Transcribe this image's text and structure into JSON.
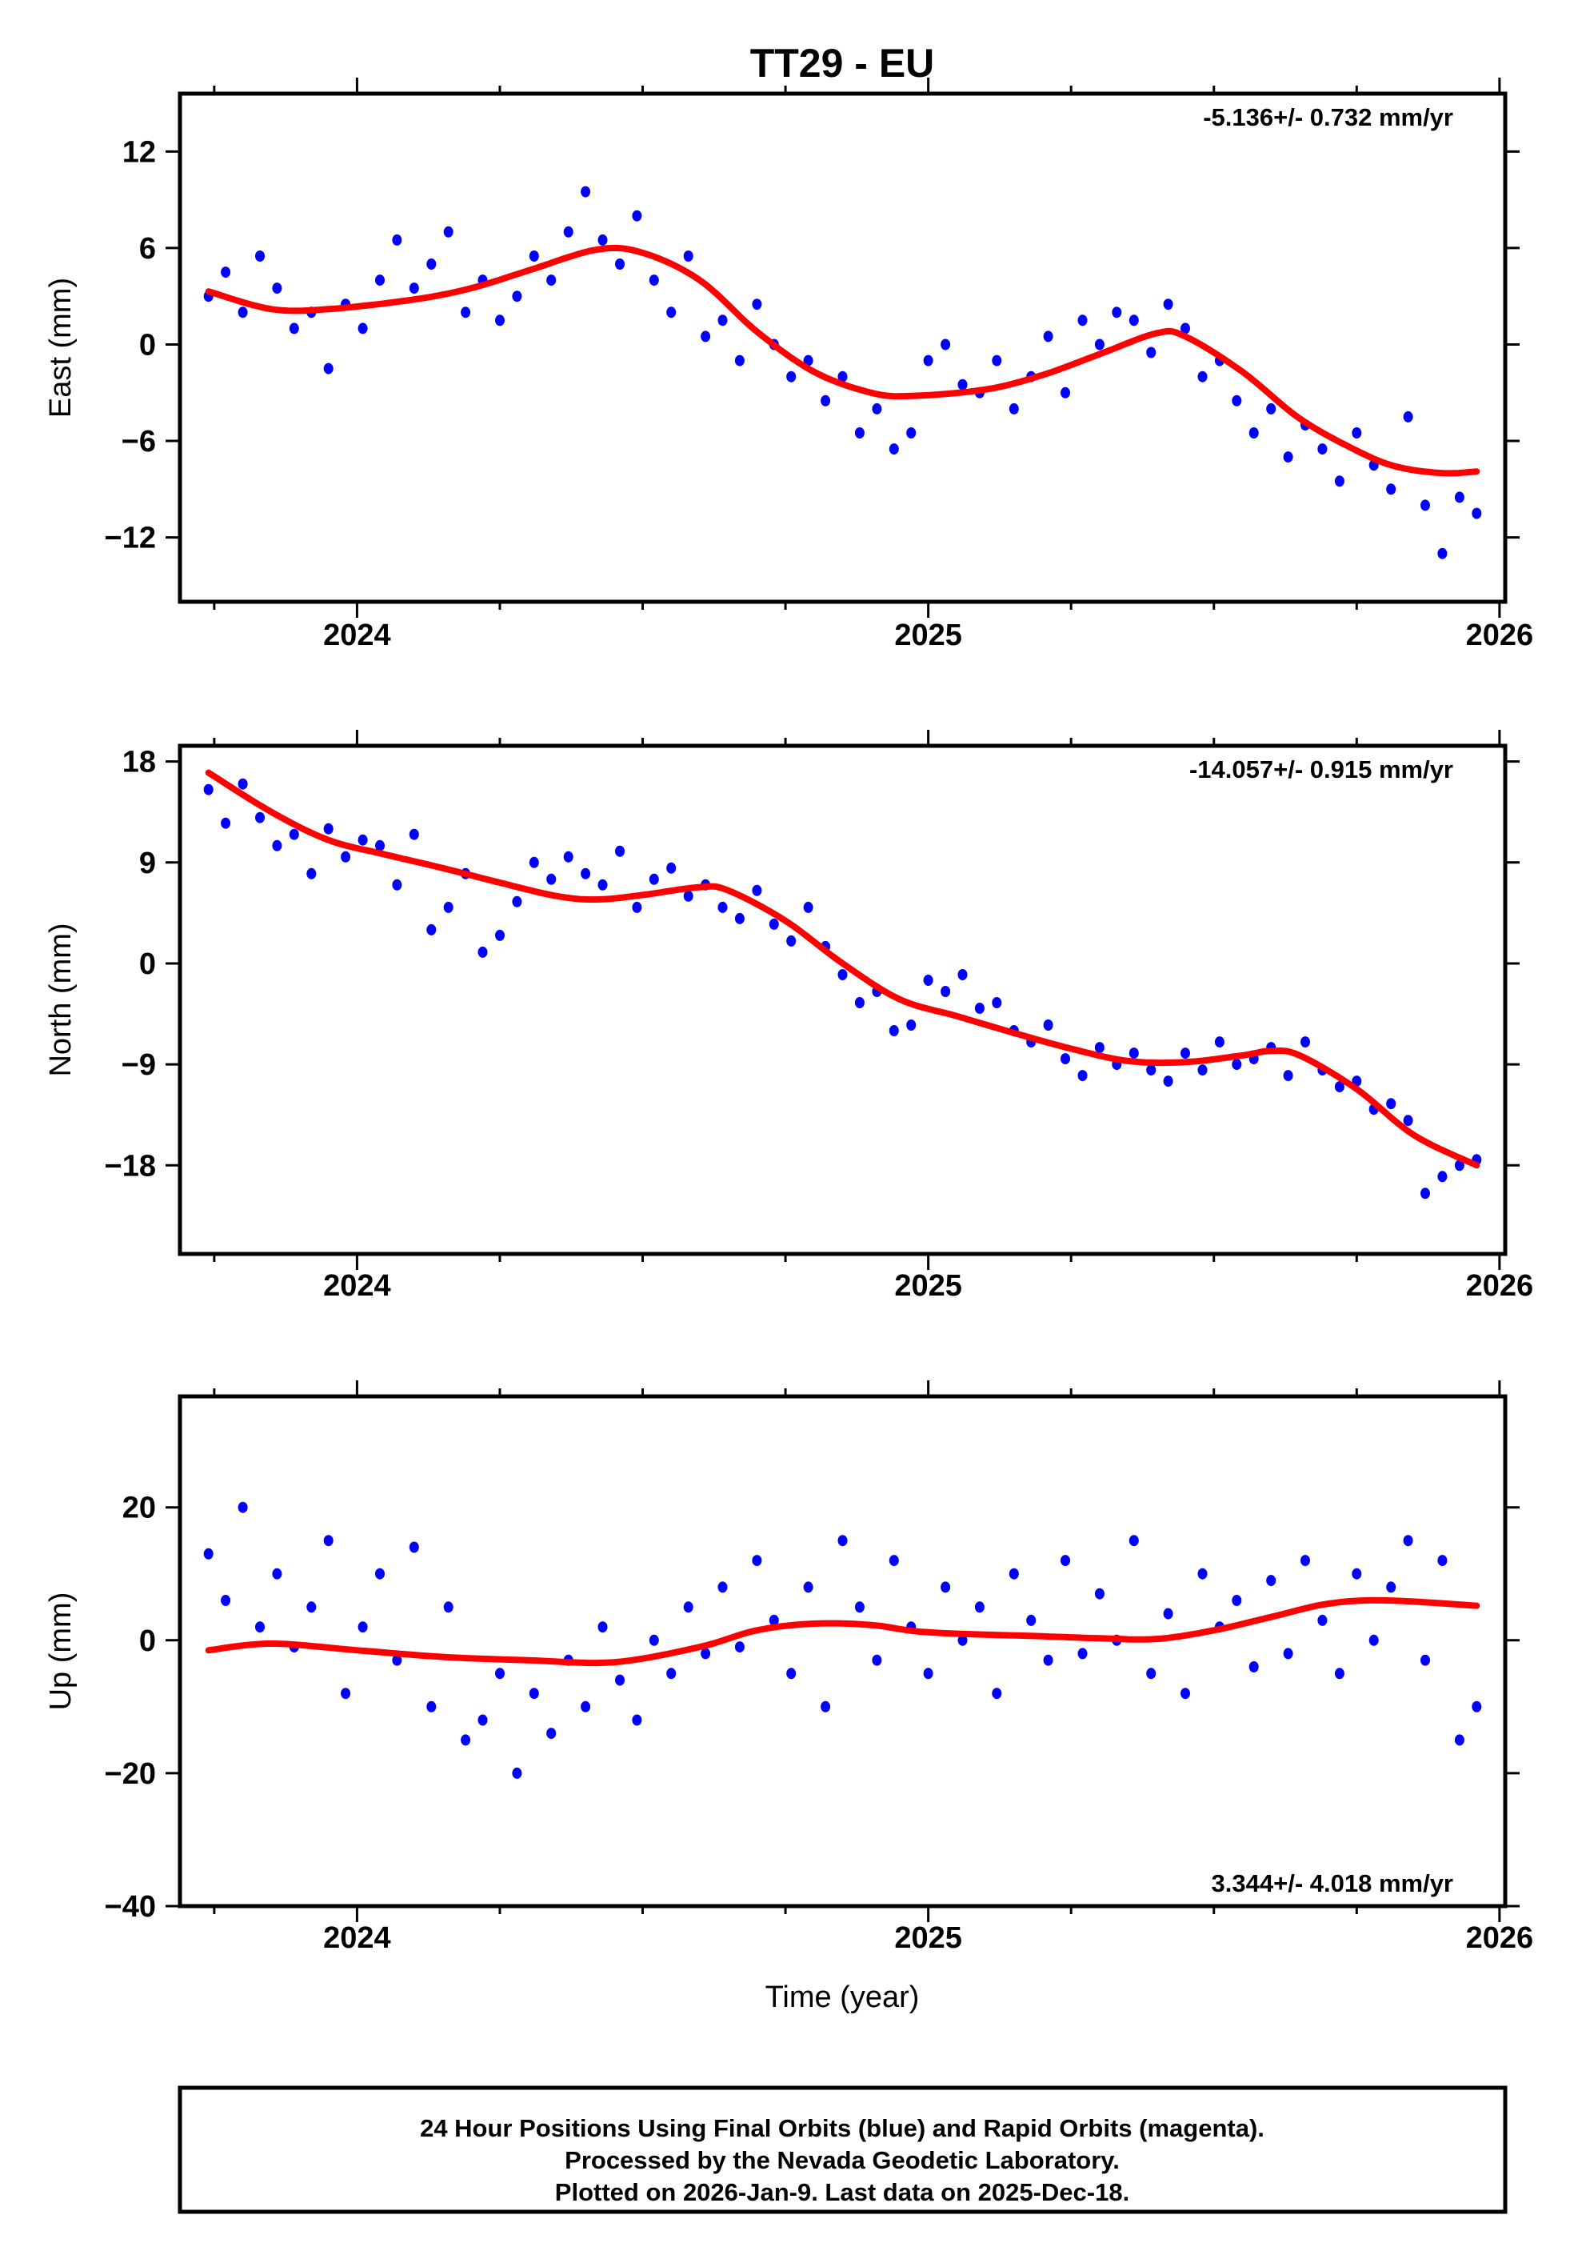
{
  "chart_data": {
    "type": "scatter",
    "title": "TT29 - EU",
    "xlabel": "Time (year)",
    "xlim": [
      2023.69,
      2026.01
    ],
    "xticks": [
      2024,
      2025,
      2026
    ],
    "xtick_labels": [
      "2024",
      "2025",
      "2026"
    ],
    "minor_xticks": [
      2023.75,
      2024.25,
      2024.5,
      2024.75,
      2025.25,
      2025.5,
      2025.75
    ],
    "colors": {
      "points": "#0000ff",
      "fit": "#ff0000",
      "frame": "#000000"
    },
    "legend": "none",
    "t": [
      2023.74,
      2023.77,
      2023.8,
      2023.83,
      2023.86,
      2023.89,
      2023.92,
      2023.95,
      2023.98,
      2024.01,
      2024.04,
      2024.07,
      2024.1,
      2024.13,
      2024.16,
      2024.19,
      2024.22,
      2024.25,
      2024.28,
      2024.31,
      2024.34,
      2024.37,
      2024.4,
      2024.43,
      2024.46,
      2024.49,
      2024.52,
      2024.55,
      2024.58,
      2024.61,
      2024.64,
      2024.67,
      2024.7,
      2024.73,
      2024.76,
      2024.79,
      2024.82,
      2024.85,
      2024.88,
      2024.91,
      2024.94,
      2024.97,
      2025.0,
      2025.03,
      2025.06,
      2025.09,
      2025.12,
      2025.15,
      2025.18,
      2025.21,
      2025.24,
      2025.27,
      2025.3,
      2025.33,
      2025.36,
      2025.39,
      2025.42,
      2025.45,
      2025.48,
      2025.51,
      2025.54,
      2025.57,
      2025.6,
      2025.63,
      2025.66,
      2025.69,
      2025.72,
      2025.75,
      2025.78,
      2025.81,
      2025.84,
      2025.87,
      2025.9,
      2025.93,
      2025.96
    ],
    "panels": [
      {
        "name": "east",
        "ylabel": "East (mm)",
        "rate": "-5.136+/- 0.732 mm/yr",
        "rate_position": "top-right",
        "ylim": [
          -16,
          15.6
        ],
        "yticks": [
          12,
          6,
          0,
          -6,
          -12
        ],
        "ytick_labels": [
          "12",
          "6",
          "0",
          "−6",
          "−12"
        ],
        "values": [
          3.0,
          4.5,
          2.0,
          5.5,
          3.5,
          1.0,
          2.0,
          -1.5,
          2.5,
          1.0,
          4.0,
          6.5,
          3.5,
          5.0,
          7.0,
          2.0,
          4.0,
          1.5,
          3.0,
          5.5,
          4.0,
          7.0,
          9.5,
          6.5,
          5.0,
          8.0,
          4.0,
          2.0,
          5.5,
          0.5,
          1.5,
          -1.0,
          2.5,
          0.0,
          -2.0,
          -1.0,
          -3.5,
          -2.0,
          -5.5,
          -4.0,
          -6.5,
          -5.5,
          -1.0,
          0.0,
          -2.5,
          -3.0,
          -1.0,
          -4.0,
          -2.0,
          0.5,
          -3.0,
          1.5,
          0.0,
          2.0,
          1.5,
          -0.5,
          2.5,
          1.0,
          -2.0,
          -1.0,
          -3.5,
          -5.5,
          -4.0,
          -7.0,
          -5.0,
          -6.5,
          -8.5,
          -5.5,
          -7.5,
          -9.0,
          -4.5,
          -10.0,
          -13.0,
          -9.5,
          -10.5
        ],
        "fit": [
          [
            2023.74,
            3.3
          ],
          [
            2023.85,
            2.2
          ],
          [
            2023.95,
            2.2
          ],
          [
            2024.1,
            2.8
          ],
          [
            2024.2,
            3.5
          ],
          [
            2024.3,
            4.6
          ],
          [
            2024.42,
            5.9
          ],
          [
            2024.5,
            5.7
          ],
          [
            2024.6,
            4.0
          ],
          [
            2024.7,
            0.8
          ],
          [
            2024.8,
            -1.7
          ],
          [
            2024.9,
            -3.0
          ],
          [
            2024.97,
            -3.2
          ],
          [
            2025.1,
            -2.8
          ],
          [
            2025.2,
            -1.9
          ],
          [
            2025.3,
            -0.6
          ],
          [
            2025.4,
            0.7
          ],
          [
            2025.45,
            0.5
          ],
          [
            2025.55,
            -1.7
          ],
          [
            2025.65,
            -4.6
          ],
          [
            2025.75,
            -6.6
          ],
          [
            2025.82,
            -7.6
          ],
          [
            2025.9,
            -8.0
          ],
          [
            2025.96,
            -7.9
          ]
        ]
      },
      {
        "name": "north",
        "ylabel": "North (mm)",
        "rate": "-14.057+/- 0.915 mm/yr",
        "rate_position": "top-right",
        "ylim": [
          -25.9,
          19.4
        ],
        "yticks": [
          18,
          9,
          0,
          -9,
          -18
        ],
        "ytick_labels": [
          "18",
          "9",
          "0",
          "−9",
          "−18"
        ],
        "values": [
          15.5,
          12.5,
          16.0,
          13.0,
          10.5,
          11.5,
          8.0,
          12.0,
          9.5,
          11.0,
          10.5,
          7.0,
          11.5,
          3.0,
          5.0,
          8.0,
          1.0,
          2.5,
          5.5,
          9.0,
          7.5,
          9.5,
          8.0,
          7.0,
          10.0,
          5.0,
          7.5,
          8.5,
          6.0,
          7.0,
          5.0,
          4.0,
          6.5,
          3.5,
          2.0,
          5.0,
          1.5,
          -1.0,
          -3.5,
          -2.5,
          -6.0,
          -5.5,
          -1.5,
          -2.5,
          -1.0,
          -4.0,
          -3.5,
          -6.0,
          -7.0,
          -5.5,
          -8.5,
          -10.0,
          -7.5,
          -9.0,
          -8.0,
          -9.5,
          -10.5,
          -8.0,
          -9.5,
          -7.0,
          -9.0,
          -8.5,
          -7.5,
          -10.0,
          -7.0,
          -9.5,
          -11.0,
          -10.5,
          -13.0,
          -12.5,
          -14.0,
          -20.5,
          -19.0,
          -18.0,
          -17.5
        ],
        "fit": [
          [
            2023.74,
            17.0
          ],
          [
            2023.85,
            13.5
          ],
          [
            2023.95,
            11.0
          ],
          [
            2024.05,
            9.7
          ],
          [
            2024.15,
            8.5
          ],
          [
            2024.25,
            7.2
          ],
          [
            2024.35,
            6.0
          ],
          [
            2024.42,
            5.7
          ],
          [
            2024.5,
            6.1
          ],
          [
            2024.6,
            6.8
          ],
          [
            2024.65,
            6.5
          ],
          [
            2024.75,
            3.8
          ],
          [
            2024.85,
            0.0
          ],
          [
            2024.95,
            -3.2
          ],
          [
            2025.05,
            -4.7
          ],
          [
            2025.15,
            -6.2
          ],
          [
            2025.25,
            -7.6
          ],
          [
            2025.35,
            -8.7
          ],
          [
            2025.45,
            -8.8
          ],
          [
            2025.55,
            -8.2
          ],
          [
            2025.6,
            -7.8
          ],
          [
            2025.65,
            -8.2
          ],
          [
            2025.75,
            -11.2
          ],
          [
            2025.85,
            -15.3
          ],
          [
            2025.96,
            -18.0
          ]
        ]
      },
      {
        "name": "up",
        "ylabel": "Up (mm)",
        "rate": "3.344+/- 4.018 mm/yr",
        "rate_position": "bottom-right",
        "ylim": [
          -40,
          36.7
        ],
        "yticks": [
          20,
          0,
          -20,
          -40
        ],
        "ytick_labels": [
          "20",
          "0",
          "−20",
          "−40"
        ],
        "values": [
          13.0,
          6.0,
          20.0,
          2.0,
          10.0,
          -1.0,
          5.0,
          15.0,
          -8.0,
          2.0,
          10.0,
          -3.0,
          14.0,
          -10.0,
          5.0,
          -15.0,
          -12.0,
          -5.0,
          -20.0,
          -8.0,
          -14.0,
          -3.0,
          -10.0,
          2.0,
          -6.0,
          -12.0,
          0.0,
          -5.0,
          5.0,
          -2.0,
          8.0,
          -1.0,
          12.0,
          3.0,
          -5.0,
          8.0,
          -10.0,
          15.0,
          5.0,
          -3.0,
          12.0,
          2.0,
          -5.0,
          8.0,
          0.0,
          5.0,
          -8.0,
          10.0,
          3.0,
          -3.0,
          12.0,
          -2.0,
          7.0,
          0.0,
          15.0,
          -5.0,
          4.0,
          -8.0,
          10.0,
          2.0,
          6.0,
          -4.0,
          9.0,
          -2.0,
          12.0,
          3.0,
          -5.0,
          10.0,
          0.0,
          8.0,
          15.0,
          -3.0,
          12.0,
          -15.0,
          -10.0
        ],
        "fit": [
          [
            2023.74,
            -1.5
          ],
          [
            2023.85,
            -0.5
          ],
          [
            2024.0,
            -1.5
          ],
          [
            2024.15,
            -2.5
          ],
          [
            2024.3,
            -3.0
          ],
          [
            2024.45,
            -3.3
          ],
          [
            2024.6,
            -1.0
          ],
          [
            2024.7,
            1.5
          ],
          [
            2024.8,
            2.5
          ],
          [
            2024.9,
            2.3
          ],
          [
            2025.0,
            1.2
          ],
          [
            2025.2,
            0.6
          ],
          [
            2025.3,
            0.3
          ],
          [
            2025.4,
            0.2
          ],
          [
            2025.5,
            1.5
          ],
          [
            2025.6,
            3.5
          ],
          [
            2025.7,
            5.5
          ],
          [
            2025.8,
            6.0
          ],
          [
            2025.96,
            5.2
          ]
        ]
      }
    ]
  },
  "footer": {
    "line1": "24 Hour Positions Using Final Orbits (blue) and Rapid Orbits (magenta).",
    "line2": "Processed by the Nevada Geodetic Laboratory.",
    "line3": "Plotted on 2026-Jan-9. Last data on 2025-Dec-18."
  }
}
